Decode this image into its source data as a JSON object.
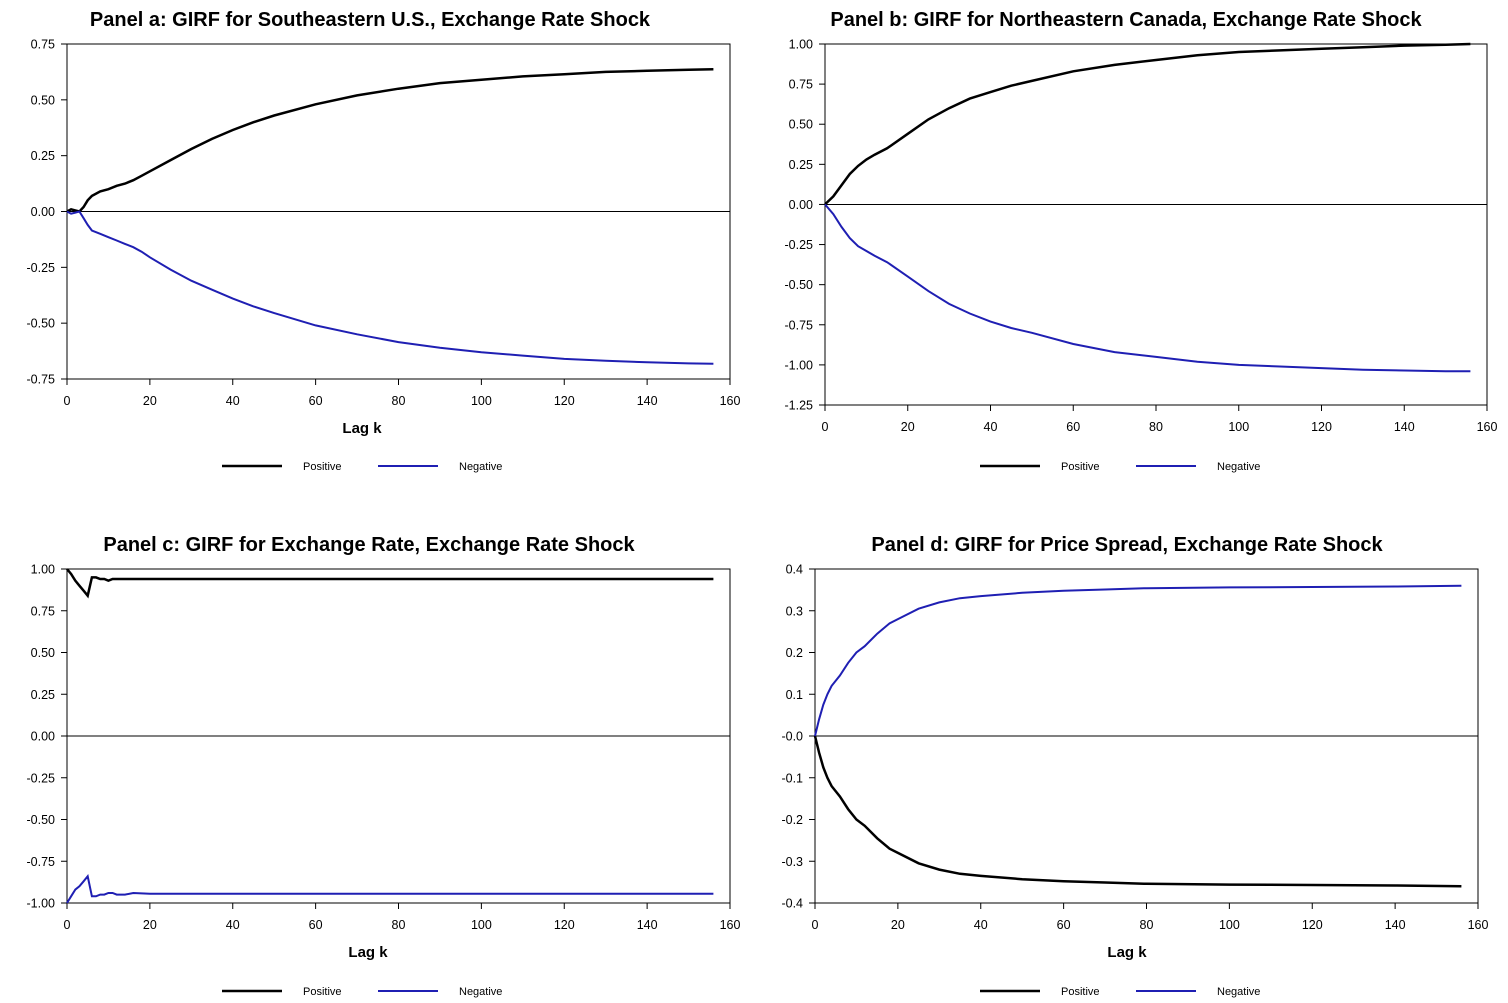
{
  "colors": {
    "positive": "#000000",
    "negative": "#1f1fb3"
  },
  "legend": {
    "positive": "Positive",
    "negative": "Negative"
  },
  "chart_data": [
    {
      "type": "line",
      "title": "Panel a: GIRF for Southeastern U.S., Exchange Rate Shock",
      "xlabel": "Lag k",
      "xlim": [
        0,
        160
      ],
      "xticks": [
        0,
        20,
        40,
        60,
        80,
        100,
        120,
        140,
        160
      ],
      "xtick_labels": [
        "0",
        "20",
        "40",
        "60",
        "80",
        "100",
        "120",
        "140",
        "160"
      ],
      "ylim": [
        -0.75,
        0.75
      ],
      "yticks": [
        0.75,
        0.5,
        0.25,
        0,
        -0.25,
        -0.5,
        -0.75
      ],
      "ytick_labels": [
        "0.75",
        "0.50",
        "0.25",
        "0.00",
        "-0.25",
        "-0.50",
        "-0.75"
      ],
      "zero_line": true,
      "legend_placement": "bottom-center",
      "series": [
        {
          "name": "Positive",
          "color": "#000000",
          "x": [
            0,
            1,
            2,
            3,
            4,
            5,
            6,
            8,
            10,
            12,
            14,
            16,
            18,
            20,
            25,
            30,
            35,
            40,
            45,
            50,
            60,
            70,
            80,
            90,
            100,
            110,
            120,
            130,
            140,
            150,
            156
          ],
          "y": [
            0,
            0.01,
            0.005,
            0,
            0.02,
            0.05,
            0.07,
            0.09,
            0.1,
            0.115,
            0.125,
            0.14,
            0.16,
            0.18,
            0.23,
            0.28,
            0.325,
            0.365,
            0.4,
            0.43,
            0.48,
            0.52,
            0.55,
            0.575,
            0.59,
            0.605,
            0.615,
            0.625,
            0.63,
            0.635,
            0.637
          ]
        },
        {
          "name": "Negative",
          "color": "#1f1fb3",
          "x": [
            0,
            1,
            2,
            3,
            4,
            5,
            6,
            8,
            10,
            12,
            14,
            16,
            18,
            20,
            25,
            30,
            35,
            40,
            45,
            50,
            60,
            70,
            80,
            90,
            100,
            110,
            120,
            130,
            140,
            150,
            156
          ],
          "y": [
            0,
            -0.01,
            -0.005,
            0,
            -0.03,
            -0.06,
            -0.085,
            -0.1,
            -0.115,
            -0.13,
            -0.145,
            -0.16,
            -0.18,
            -0.205,
            -0.26,
            -0.31,
            -0.35,
            -0.39,
            -0.425,
            -0.455,
            -0.51,
            -0.55,
            -0.585,
            -0.61,
            -0.63,
            -0.645,
            -0.66,
            -0.668,
            -0.675,
            -0.68,
            -0.682
          ]
        }
      ]
    },
    {
      "type": "line",
      "title": "Panel b: GIRF for Northeastern Canada, Exchange Rate Shock",
      "xlabel": "",
      "xlim": [
        0,
        160
      ],
      "xticks": [
        0,
        20,
        40,
        60,
        80,
        100,
        120,
        140,
        160
      ],
      "xtick_labels": [
        "0",
        "20",
        "40",
        "60",
        "80",
        "100",
        "120",
        "140",
        "160"
      ],
      "ylim": [
        -1.25,
        1.0
      ],
      "yticks": [
        1,
        0.75,
        0.5,
        0.25,
        0,
        -0.25,
        -0.5,
        -0.75,
        -1,
        -1.25
      ],
      "ytick_labels": [
        "1.00",
        "0.75",
        "0.50",
        "0.25",
        "0.00",
        "-0.25",
        "-0.50",
        "-0.75",
        "-1.00",
        "-1.25"
      ],
      "zero_line": true,
      "legend_placement": "bottom-center",
      "series": [
        {
          "name": "Positive",
          "color": "#000000",
          "x": [
            0,
            2,
            4,
            6,
            8,
            10,
            12,
            15,
            20,
            25,
            30,
            35,
            40,
            45,
            50,
            60,
            70,
            80,
            90,
            100,
            110,
            120,
            130,
            140,
            150,
            156
          ],
          "y": [
            0,
            0.05,
            0.12,
            0.19,
            0.24,
            0.28,
            0.31,
            0.35,
            0.44,
            0.53,
            0.6,
            0.66,
            0.7,
            0.74,
            0.77,
            0.83,
            0.87,
            0.9,
            0.93,
            0.95,
            0.96,
            0.97,
            0.98,
            0.99,
            0.995,
            1.0
          ]
        },
        {
          "name": "Negative",
          "color": "#1f1fb3",
          "x": [
            0,
            2,
            4,
            6,
            8,
            10,
            12,
            15,
            20,
            25,
            30,
            35,
            40,
            45,
            50,
            60,
            70,
            80,
            90,
            100,
            110,
            120,
            130,
            140,
            150,
            156
          ],
          "y": [
            0,
            -0.06,
            -0.14,
            -0.21,
            -0.26,
            -0.29,
            -0.32,
            -0.36,
            -0.45,
            -0.54,
            -0.62,
            -0.68,
            -0.73,
            -0.77,
            -0.8,
            -0.87,
            -0.92,
            -0.95,
            -0.98,
            -1.0,
            -1.01,
            -1.02,
            -1.03,
            -1.035,
            -1.04,
            -1.04
          ]
        }
      ]
    },
    {
      "type": "line",
      "title": "Panel c: GIRF for Exchange Rate, Exchange Rate Shock",
      "xlabel": "Lag k",
      "xlim": [
        0,
        160
      ],
      "xticks": [
        0,
        20,
        40,
        60,
        80,
        100,
        120,
        140,
        160
      ],
      "xtick_labels": [
        "0",
        "20",
        "40",
        "60",
        "80",
        "100",
        "120",
        "140",
        "160"
      ],
      "ylim": [
        -1.0,
        1.0
      ],
      "yticks": [
        1,
        0.75,
        0.5,
        0.25,
        0,
        -0.25,
        -0.5,
        -0.75,
        -1
      ],
      "ytick_labels": [
        "1.00",
        "0.75",
        "0.50",
        "0.25",
        "0.00",
        "-0.25",
        "-0.50",
        "-0.75",
        "-1.00"
      ],
      "zero_line": true,
      "legend_placement": "bottom-center",
      "series": [
        {
          "name": "Positive",
          "color": "#000000",
          "x": [
            0,
            1,
            2,
            3,
            4,
            5,
            6,
            7,
            8,
            9,
            10,
            11,
            12,
            14,
            16,
            20,
            40,
            60,
            80,
            100,
            120,
            140,
            156
          ],
          "y": [
            1.0,
            0.97,
            0.93,
            0.9,
            0.87,
            0.84,
            0.95,
            0.95,
            0.94,
            0.94,
            0.93,
            0.94,
            0.94,
            0.94,
            0.94,
            0.94,
            0.94,
            0.94,
            0.94,
            0.94,
            0.94,
            0.94,
            0.94
          ]
        },
        {
          "name": "Negative",
          "color": "#1f1fb3",
          "x": [
            0,
            1,
            2,
            3,
            4,
            5,
            6,
            7,
            8,
            9,
            10,
            11,
            12,
            14,
            16,
            20,
            40,
            60,
            80,
            100,
            120,
            140,
            156
          ],
          "y": [
            -1.0,
            -0.96,
            -0.92,
            -0.9,
            -0.87,
            -0.84,
            -0.96,
            -0.96,
            -0.95,
            -0.95,
            -0.94,
            -0.94,
            -0.95,
            -0.95,
            -0.94,
            -0.945,
            -0.945,
            -0.945,
            -0.945,
            -0.945,
            -0.945,
            -0.945,
            -0.945
          ]
        }
      ]
    },
    {
      "type": "line",
      "title": "Panel d: GIRF for Price Spread, Exchange Rate Shock",
      "xlabel": "Lag k",
      "xlim": [
        0,
        160
      ],
      "xticks": [
        0,
        20,
        40,
        60,
        80,
        100,
        120,
        140,
        160
      ],
      "xtick_labels": [
        "0",
        "20",
        "40",
        "60",
        "80",
        "100",
        "120",
        "140",
        "160"
      ],
      "ylim": [
        -0.4,
        0.4
      ],
      "yticks": [
        0.4,
        0.3,
        0.2,
        0.1,
        0,
        -0.1,
        -0.2,
        -0.3,
        -0.4
      ],
      "ytick_labels": [
        "0.4",
        "0.3",
        "0.2",
        "0.1",
        "-0.0",
        "-0.1",
        "-0.2",
        "-0.3",
        "-0.4"
      ],
      "zero_line": true,
      "legend_placement": "bottom-center",
      "series": [
        {
          "name": "Positive",
          "color": "#000000",
          "x": [
            0,
            1,
            2,
            3,
            4,
            6,
            8,
            10,
            12,
            15,
            18,
            20,
            25,
            30,
            35,
            40,
            50,
            60,
            70,
            80,
            100,
            120,
            140,
            156
          ],
          "y": [
            0,
            -0.04,
            -0.075,
            -0.1,
            -0.12,
            -0.145,
            -0.175,
            -0.2,
            -0.215,
            -0.245,
            -0.27,
            -0.28,
            -0.305,
            -0.32,
            -0.33,
            -0.335,
            -0.343,
            -0.348,
            -0.351,
            -0.354,
            -0.356,
            -0.357,
            -0.358,
            -0.36
          ]
        },
        {
          "name": "Negative",
          "color": "#1f1fb3",
          "x": [
            0,
            1,
            2,
            3,
            4,
            6,
            8,
            10,
            12,
            15,
            18,
            20,
            25,
            30,
            35,
            40,
            50,
            60,
            70,
            80,
            100,
            120,
            140,
            156
          ],
          "y": [
            0,
            0.04,
            0.075,
            0.1,
            0.12,
            0.145,
            0.175,
            0.2,
            0.215,
            0.245,
            0.27,
            0.28,
            0.305,
            0.32,
            0.33,
            0.335,
            0.343,
            0.348,
            0.351,
            0.354,
            0.356,
            0.357,
            0.358,
            0.36
          ]
        }
      ]
    }
  ]
}
